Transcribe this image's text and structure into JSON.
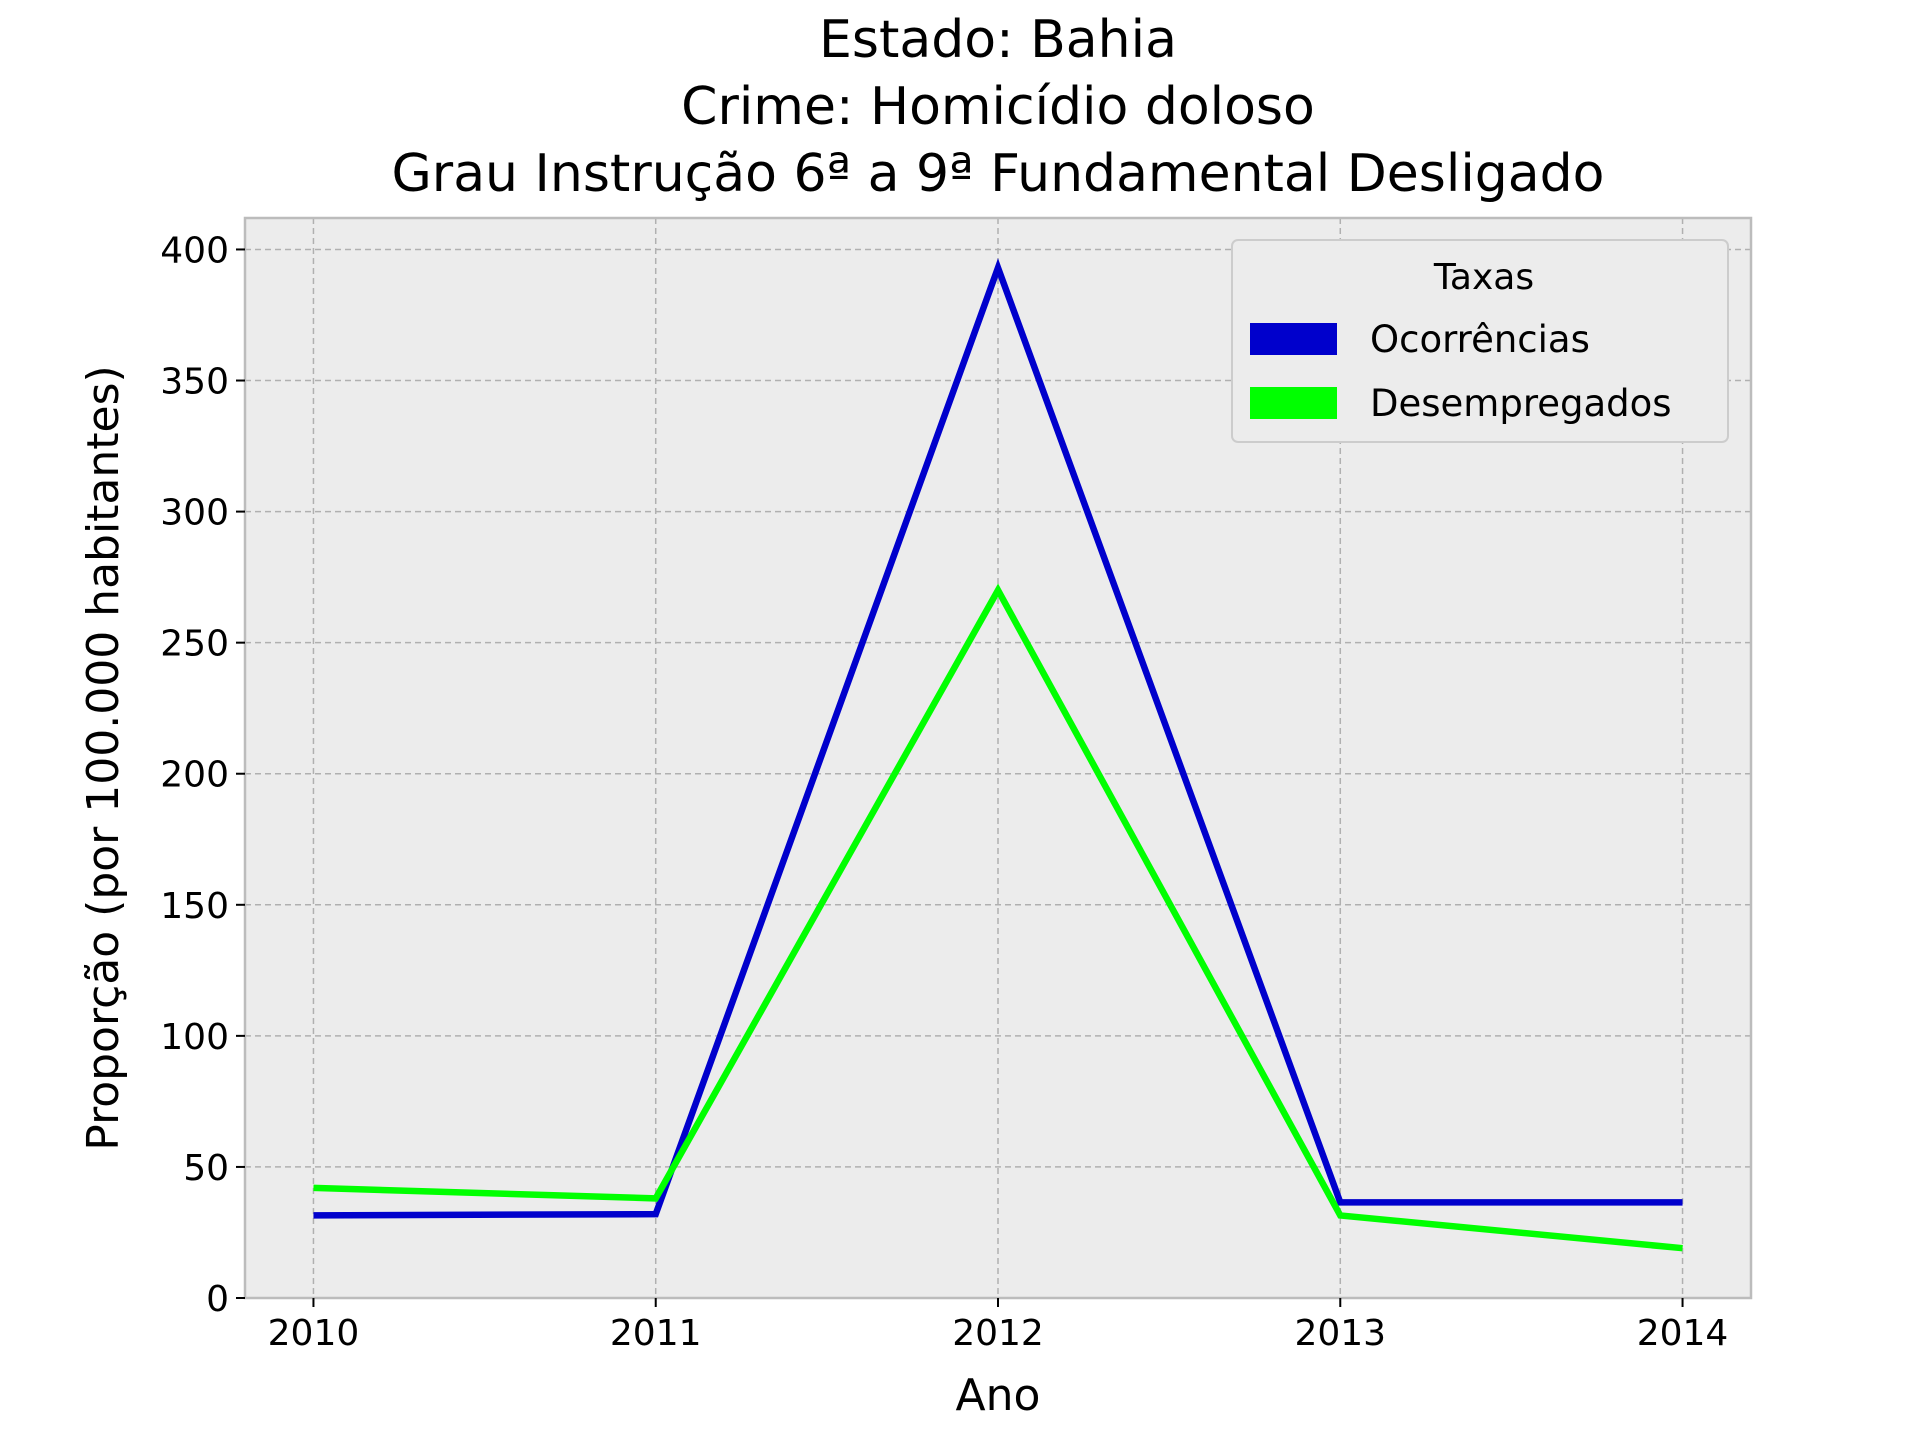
{
  "chart_data": {
    "type": "line",
    "title_lines": [
      "Estado: Bahia",
      "Crime: Homicídio doloso",
      "Grau Instrução  6ª a 9ª Fundamental   Desligado"
    ],
    "xlabel": "Ano",
    "ylabel": "Proporção (por 100.000 habitantes)",
    "categories": [
      "2010",
      "2011",
      "2012",
      "2013",
      "2014"
    ],
    "x": [
      2010,
      2011,
      2012,
      2013,
      2014
    ],
    "xlim": [
      2009.8,
      2014.2
    ],
    "ylim": [
      0,
      412
    ],
    "yticks": [
      0,
      50,
      100,
      150,
      200,
      250,
      300,
      350,
      400
    ],
    "grid": true,
    "legend": {
      "title": "Taxas",
      "placement": "top-right"
    },
    "series": [
      {
        "name": "Ocorrências",
        "color": "#0000cc",
        "values": [
          31.5,
          32,
          393,
          36.5,
          36.5
        ]
      },
      {
        "name": "Desempregados",
        "color": "#00ff00",
        "values": [
          42,
          38,
          270,
          31.5,
          19
        ]
      }
    ],
    "colors": {
      "plot_bg": "#ececec",
      "grid": "#b0b0b0",
      "frame": "#bcbcbc"
    }
  }
}
